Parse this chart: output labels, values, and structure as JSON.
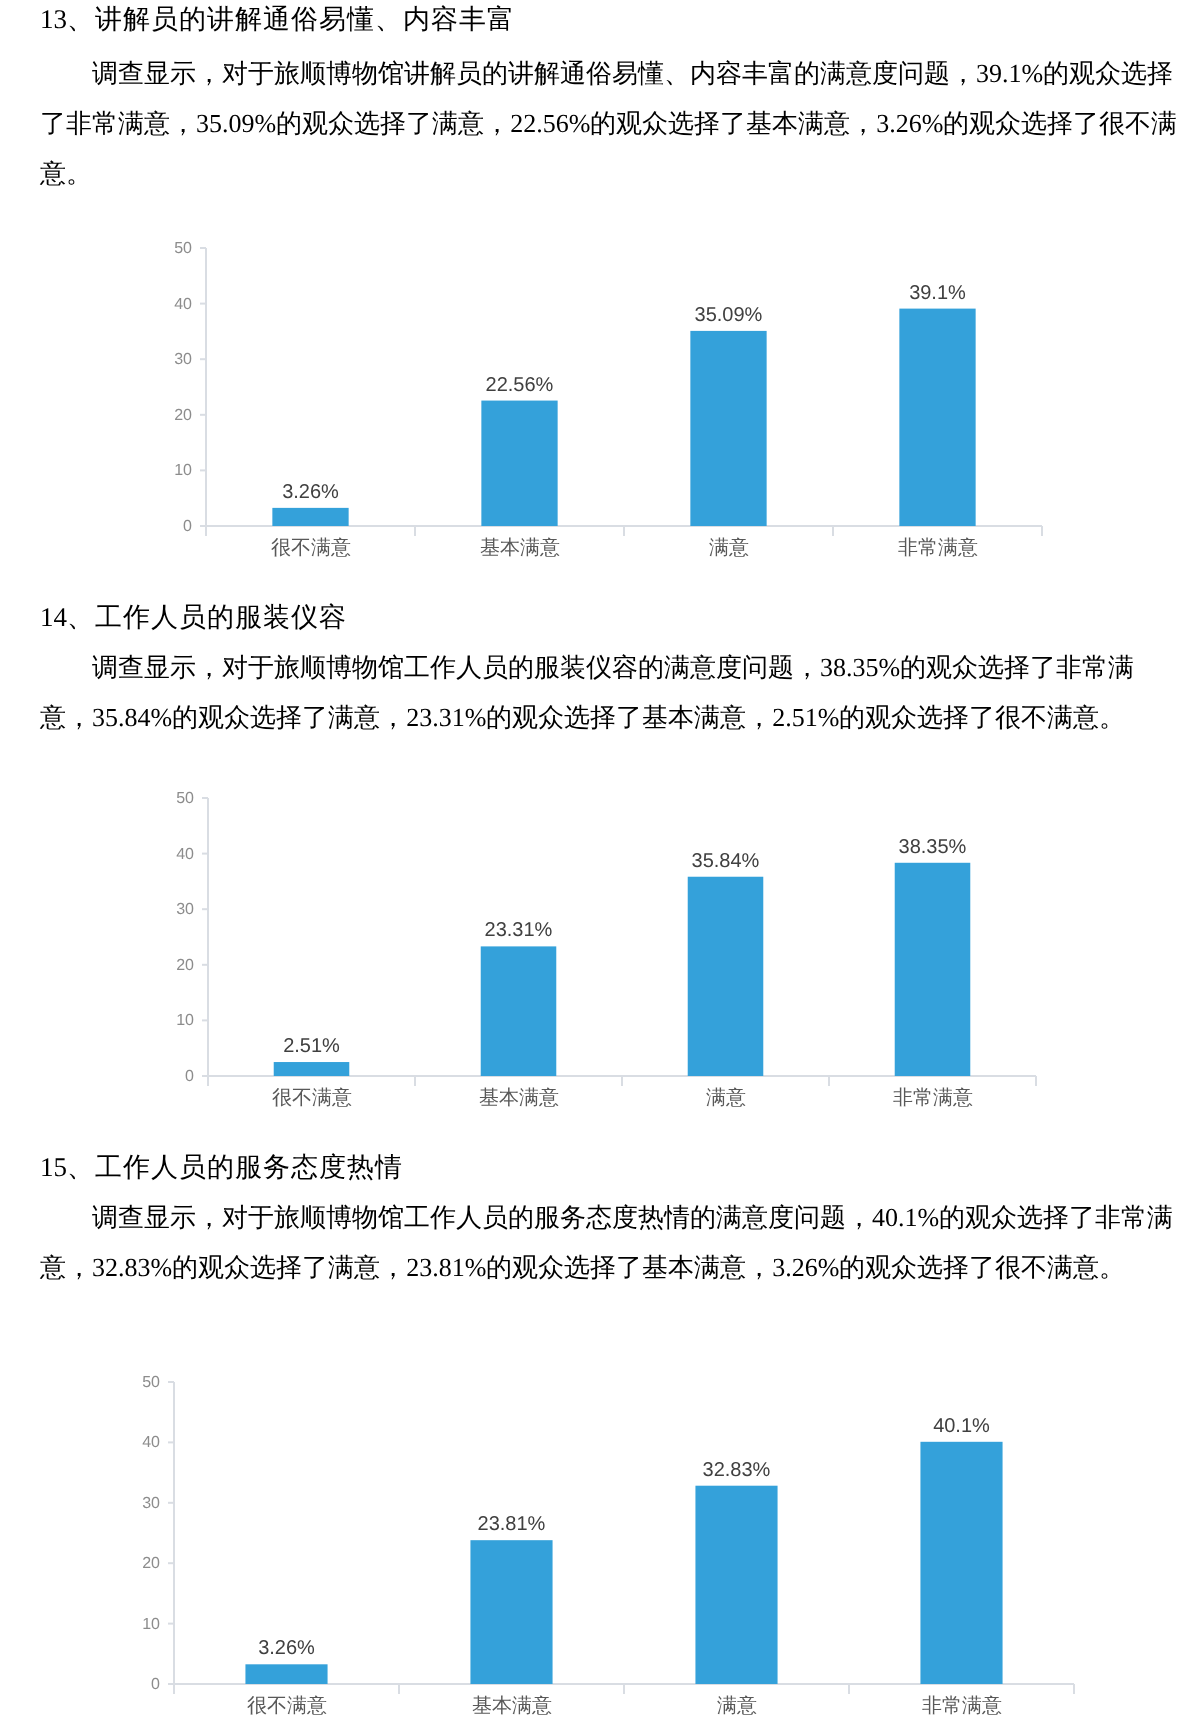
{
  "chart_data": [
    {
      "type": "bar",
      "title": "13、讲解员的讲解通俗易懂、内容丰富",
      "subtitle": "调查显示，对于旅顺博物馆讲解员的讲解通俗易懂、内容丰富的满意度问题，39.1%的观众选择了非常满意，35.09%的观众选择了满意，22.56%的观众选择了基本满意，3.26%的观众选择了很不满意。",
      "categories": [
        "很不满意",
        "基本满意",
        "满意",
        "非常满意"
      ],
      "values": [
        3.26,
        22.56,
        35.09,
        39.1
      ],
      "value_labels": [
        "3.26%",
        "22.56%",
        "35.09%",
        "39.1%"
      ],
      "color": "#34a1da",
      "ylim": [
        0,
        50
      ],
      "yticks": [
        0,
        10,
        20,
        30,
        40,
        50
      ]
    },
    {
      "type": "bar",
      "title": "14、工作人员的服装仪容",
      "subtitle": "调查显示，对于旅顺博物馆工作人员的服装仪容的满意度问题，38.35%的观众选择了非常满意，35.84%的观众选择了满意，23.31%的观众选择了基本满意，2.51%的观众选择了很不满意。",
      "categories": [
        "很不满意",
        "基本满意",
        "满意",
        "非常满意"
      ],
      "values": [
        2.51,
        23.31,
        35.84,
        38.35
      ],
      "value_labels": [
        "2.51%",
        "23.31%",
        "35.84%",
        "38.35%"
      ],
      "color": "#34a1da",
      "ylim": [
        0,
        50
      ],
      "yticks": [
        0,
        10,
        20,
        30,
        40,
        50
      ]
    },
    {
      "type": "bar",
      "title": "15、工作人员的服务态度热情",
      "subtitle": "调查显示，对于旅顺博物馆工作人员的服务态度热情的满意度问题，40.1%的观众选择了非常满意，32.83%的观众选择了满意，23.81%的观众选择了基本满意，3.26%的观众选择了很不满意。",
      "categories": [
        "很不满意",
        "基本满意",
        "满意",
        "非常满意"
      ],
      "values": [
        3.26,
        23.81,
        32.83,
        40.1
      ],
      "value_labels": [
        "3.26%",
        "23.81%",
        "32.83%",
        "40.1%"
      ],
      "color": "#34a1da",
      "ylim": [
        0,
        50
      ],
      "yticks": [
        0,
        10,
        20,
        30,
        40,
        50
      ]
    }
  ]
}
